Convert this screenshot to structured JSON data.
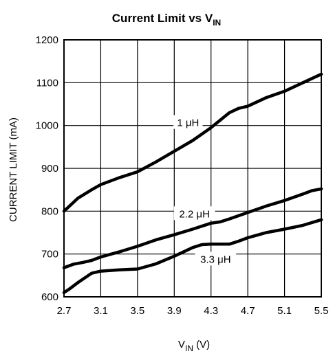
{
  "chart_data": {
    "type": "line",
    "title_main": "Current Limit vs V",
    "title_sub": "IN",
    "xlabel_main": "V",
    "xlabel_sub": "IN",
    "xlabel_unit": " (V)",
    "ylabel": "CURRENT LIMIT (mA)",
    "xlim": [
      2.7,
      5.5
    ],
    "ylim": [
      600,
      1200
    ],
    "grid": true,
    "x_ticks": [
      "2.7",
      "3.1",
      "3.5",
      "3.9",
      "4.3",
      "4.7",
      "5.1",
      "5.5"
    ],
    "y_ticks": [
      "600",
      "700",
      "800",
      "900",
      "1000",
      "1100",
      "1200"
    ],
    "series": [
      {
        "name": "1 μH",
        "x": [
          2.7,
          2.75,
          2.85,
          3.0,
          3.1,
          3.3,
          3.5,
          3.7,
          3.9,
          4.1,
          4.3,
          4.5,
          4.6,
          4.7,
          4.9,
          5.1,
          5.3,
          5.5
        ],
        "y": [
          800,
          810,
          830,
          850,
          862,
          878,
          892,
          915,
          940,
          965,
          995,
          1030,
          1040,
          1045,
          1065,
          1080,
          1100,
          1120
        ]
      },
      {
        "name": "2.2 μH",
        "x": [
          2.7,
          2.8,
          2.9,
          3.0,
          3.1,
          3.3,
          3.5,
          3.7,
          3.9,
          4.1,
          4.3,
          4.4,
          4.5,
          4.7,
          4.9,
          5.1,
          5.3,
          5.4,
          5.5
        ],
        "y": [
          668,
          676,
          680,
          685,
          693,
          705,
          718,
          733,
          745,
          758,
          772,
          775,
          782,
          797,
          812,
          825,
          840,
          848,
          852
        ]
      },
      {
        "name": "3.3 μH",
        "x": [
          2.7,
          2.75,
          2.85,
          3.0,
          3.1,
          3.3,
          3.5,
          3.7,
          3.9,
          4.1,
          4.2,
          4.3,
          4.5,
          4.6,
          4.7,
          4.9,
          5.1,
          5.3,
          5.5
        ],
        "y": [
          610,
          617,
          633,
          655,
          660,
          663,
          665,
          677,
          695,
          715,
          722,
          723,
          723,
          730,
          738,
          750,
          758,
          767,
          780
        ]
      }
    ]
  }
}
